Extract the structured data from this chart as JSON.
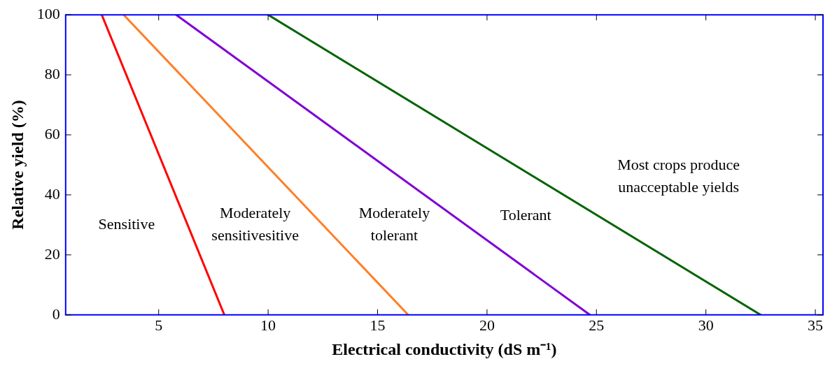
{
  "chart_data": {
    "type": "line",
    "xlabel": "Electrical conductivity (dS m⁻¹)",
    "ylabel": "Relative yield (%)",
    "series": [
      {
        "color": "#ff0000",
        "x": [
          2.4,
          8.0
        ],
        "values": [
          100,
          0
        ]
      },
      {
        "color": "#ff7f27",
        "x": [
          3.4,
          16.4
        ],
        "values": [
          100,
          0
        ]
      },
      {
        "color": "#7f00d4",
        "x": [
          5.8,
          24.7
        ],
        "values": [
          100,
          0
        ]
      },
      {
        "color": "#006400",
        "x": [
          10.0,
          32.5
        ],
        "values": [
          100,
          0
        ]
      }
    ],
    "xlim": [
      0.75,
      35.35
    ],
    "xticks": [
      5,
      10,
      15,
      20,
      25,
      30,
      35
    ],
    "ylim": [
      0,
      100
    ],
    "yticks": [
      0,
      20,
      40,
      60,
      80,
      100
    ],
    "grid": false,
    "legend": false,
    "marker": "none",
    "line_style": "solid",
    "annotations": [
      "Sensitive",
      "Moderately\nsensitivesitive",
      "Moderately\ntolerant",
      "Tolerant",
      "Most crops produce\nunacceptable yields"
    ]
  }
}
